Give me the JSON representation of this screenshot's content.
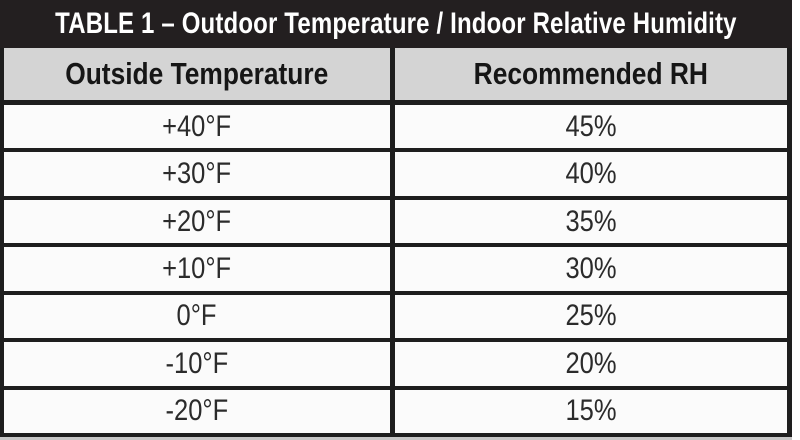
{
  "table": {
    "title": "TABLE 1 – Outdoor Temperature / Indoor Relative Humidity",
    "columns": [
      "Outside Temperature",
      "Recommended RH"
    ],
    "rows": [
      {
        "temp": "+40°F",
        "rh": "45%"
      },
      {
        "temp": "+30°F",
        "rh": "40%"
      },
      {
        "temp": "+20°F",
        "rh": "35%"
      },
      {
        "temp": "+10°F",
        "rh": "30%"
      },
      {
        "temp": "0°F",
        "rh": "25%"
      },
      {
        "temp": "-10°F",
        "rh": "20%"
      },
      {
        "temp": "-20°F",
        "rh": "15%"
      }
    ]
  },
  "colors": {
    "title_bar": "#231f20",
    "title_text": "#ffffff",
    "header_bg": "#d4d4d4",
    "header_text": "#161616",
    "row_bg": "#fbfbfb",
    "data_text": "#2b2b2b",
    "border": "#1e1e1e",
    "bottom_strip": "#c6c6c6"
  },
  "chart_data": {
    "type": "table",
    "title": "TABLE 1 – Outdoor Temperature / Indoor Relative Humidity",
    "columns": [
      "Outside Temperature",
      "Recommended RH"
    ],
    "rows": [
      [
        "+40°F",
        "45%"
      ],
      [
        "+30°F",
        "40%"
      ],
      [
        "+20°F",
        "35%"
      ],
      [
        "+10°F",
        "30%"
      ],
      [
        "0°F",
        "25%"
      ],
      [
        "-10°F",
        "20%"
      ],
      [
        "-20°F",
        "15%"
      ]
    ]
  }
}
